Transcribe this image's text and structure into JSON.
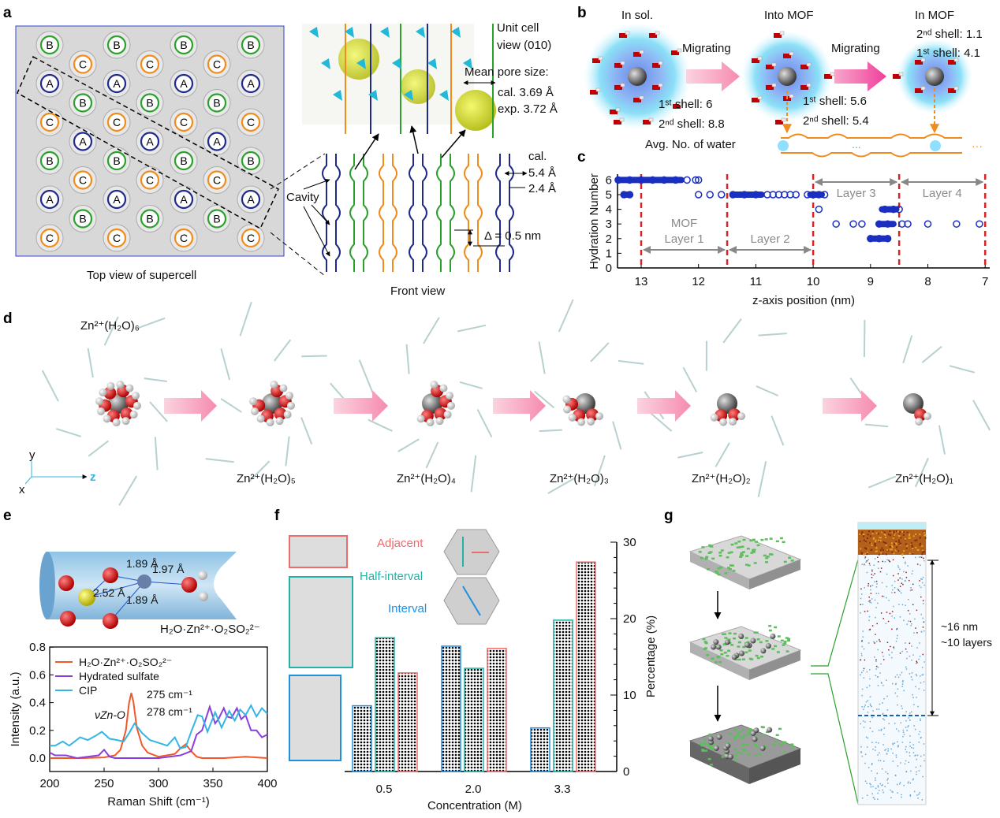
{
  "panels": {
    "a": {
      "label": "a",
      "top_view_caption": "Top view of supercell",
      "front_view_caption": "Front view",
      "unit_cell_label": "Unit cell view (010)",
      "unit_cell_line1": "Unit cell",
      "unit_cell_line2": "view (010)",
      "mean_pore_size": "Mean pore size:",
      "pore_cal": "cal. 3.69 Å",
      "pore_exp": "exp. 3.72 Å",
      "cal_label": "cal.",
      "width_large": "5.4 Å",
      "width_small": "2.4 Å",
      "cavity": "Cavity",
      "delta": "Δ = 0.5 nm",
      "site_rows": [
        [
          "B",
          "B",
          "B",
          "B"
        ],
        [
          "C",
          "C",
          "C"
        ],
        [
          "A",
          "A",
          "A",
          "A"
        ],
        [
          "B",
          "B",
          "B"
        ],
        [
          "C",
          "C",
          "C",
          "C"
        ],
        [
          "A",
          "A",
          "A"
        ],
        [
          "B",
          "B",
          "B",
          "B"
        ],
        [
          "C",
          "C",
          "C"
        ],
        [
          "A",
          "A",
          "A",
          "A"
        ],
        [
          "B",
          "B",
          "B"
        ],
        [
          "C",
          "C",
          "C",
          "C"
        ]
      ],
      "site_colors": {
        "A": "#1f2a8a",
        "B": "#2ca02c",
        "C": "#f08c1e"
      }
    },
    "b": {
      "label": "b",
      "states": [
        "In sol.",
        "Into MOF",
        "In MOF"
      ],
      "migrating": "Migrating",
      "sol_first": "1ˢᵗ shell: 6",
      "sol_second": "2ⁿᵈ shell: 8.8",
      "into_first": "1ˢᵗ shell: 5.6",
      "into_second": "2ⁿᵈ shell: 5.4",
      "in_second": "2ⁿᵈ shell: 1.1",
      "in_first": "1ˢᵗ shell: 4.1",
      "avg_label": "Avg. No. of water",
      "ellipsis": "...",
      "ellipsis2": "···"
    },
    "d": {
      "label": "d",
      "species": [
        "Zn²⁺(H₂O)₆",
        "Zn²⁺(H₂O)₅",
        "Zn²⁺(H₂O)₄",
        "Zn²⁺(H₂O)₃",
        "Zn²⁺(H₂O)₂",
        "Zn²⁺(H₂O)₁"
      ],
      "axes": {
        "x": "x",
        "y": "y",
        "z": "z"
      }
    },
    "e": {
      "label": "e",
      "model_caption": "H₂O·Zn²⁺·O₂SO₂²⁻",
      "bond_labels": [
        "1.89 Å",
        "2.52 Å",
        "1.97 Å",
        "1.89 Å"
      ],
      "annotation_275": "275 cm⁻¹",
      "annotation_278": "278 cm⁻¹",
      "annotation_mode": "νZn-O"
    },
    "f": {
      "label": "f",
      "legend": [
        "Adjacent",
        "Half-interval",
        "Interval"
      ]
    },
    "g": {
      "label": "g",
      "thickness": "~16 nm",
      "layers": "~10 layers"
    }
  },
  "chart_data": [
    {
      "panel": "c",
      "label": "c",
      "type": "scatter",
      "xlabel": "z-axis position (nm)",
      "ylabel": "Hydration Number",
      "xlim": [
        13.4,
        7
      ],
      "ylim": [
        0,
        6
      ],
      "xticks": [
        "13",
        "12",
        "11",
        "10",
        "9",
        "8",
        "7"
      ],
      "yticks": [
        "0",
        "1",
        "2",
        "3",
        "4",
        "5",
        "6"
      ],
      "boundaries": [
        13,
        11.5,
        10,
        8.5,
        7
      ],
      "regions": [
        "MOF",
        "Layer 1",
        "Layer 2",
        "Layer 3",
        "Layer 4"
      ],
      "series": [
        {
          "points": [
            [
              13.4,
              6
            ],
            [
              13.2,
              6
            ],
            [
              13.0,
              6
            ],
            [
              12.8,
              6
            ],
            [
              12.6,
              6
            ],
            [
              12.4,
              6
            ],
            [
              12.2,
              6
            ],
            [
              12.05,
              6
            ],
            [
              12.0,
              6
            ],
            [
              13.3,
              5
            ],
            [
              13.2,
              5
            ],
            [
              12.0,
              5
            ],
            [
              11.8,
              5
            ],
            [
              11.6,
              5
            ],
            [
              11.4,
              5
            ],
            [
              11.2,
              5
            ],
            [
              11.0,
              5
            ],
            [
              10.8,
              5
            ],
            [
              10.7,
              5
            ],
            [
              10.6,
              5
            ],
            [
              10.5,
              5
            ],
            [
              10.4,
              5
            ],
            [
              10.3,
              5
            ],
            [
              10.1,
              5
            ],
            [
              10.0,
              5
            ],
            [
              9.9,
              5
            ],
            [
              9.8,
              5
            ],
            [
              9.9,
              4
            ],
            [
              8.75,
              4
            ],
            [
              8.6,
              4
            ],
            [
              8.5,
              4
            ],
            [
              9.6,
              3
            ],
            [
              9.3,
              3
            ],
            [
              9.15,
              3
            ],
            [
              8.85,
              3
            ],
            [
              8.7,
              3
            ],
            [
              8.45,
              3
            ],
            [
              8.35,
              3
            ],
            [
              8.0,
              3
            ],
            [
              7.5,
              3
            ],
            [
              7.1,
              3
            ],
            [
              9.0,
              2
            ],
            [
              8.85,
              2
            ],
            [
              8.7,
              2
            ]
          ]
        }
      ]
    },
    {
      "panel": "e",
      "type": "line",
      "xlabel": "Raman Shift (cm⁻¹)",
      "ylabel": "Intensity (a.u.)",
      "xlim": [
        200,
        400
      ],
      "ylim": [
        -0.1,
        0.8
      ],
      "xticks": [
        "200",
        "250",
        "300",
        "350",
        "400"
      ],
      "yticks": [
        "0.0",
        "0.2",
        "0.4",
        "0.6",
        "0.8"
      ],
      "legend_position": "top-left",
      "series": [
        {
          "name": "H₂O·Zn²⁺·O₂SO₂²⁻",
          "color": "#f0582a",
          "x": [
            200,
            230,
            250,
            260,
            265,
            270,
            273,
            275,
            277,
            280,
            285,
            290,
            300,
            315,
            320,
            325,
            330,
            335,
            340,
            360,
            380,
            400
          ],
          "y": [
            0.0,
            0.0,
            0.005,
            0.02,
            0.06,
            0.2,
            0.4,
            0.47,
            0.4,
            0.22,
            0.09,
            0.04,
            0.01,
            0.03,
            0.07,
            0.1,
            0.05,
            0.01,
            0.0,
            0.0,
            0.01,
            0.0
          ]
        },
        {
          "name": "Hydrated sulfate",
          "color": "#8a3fdc",
          "x": [
            200,
            205,
            215,
            225,
            245,
            250,
            255,
            260,
            300,
            320,
            330,
            335,
            340,
            347,
            352,
            355,
            360,
            363,
            367,
            372,
            376,
            380,
            385,
            390,
            395,
            400
          ],
          "y": [
            0.04,
            0.02,
            0.02,
            0.0,
            0.02,
            0.06,
            0.01,
            0.0,
            0.0,
            0.02,
            0.05,
            0.17,
            0.2,
            0.37,
            0.25,
            0.28,
            0.36,
            0.3,
            0.29,
            0.36,
            0.28,
            0.31,
            0.2,
            0.2,
            0.15,
            0.17
          ]
        },
        {
          "name": "CIP",
          "color": "#33b5e5",
          "x": [
            200,
            205,
            212,
            218,
            228,
            235,
            242,
            248,
            255,
            262,
            268,
            273,
            278,
            285,
            292,
            300,
            308,
            315,
            320,
            325,
            330,
            336,
            340,
            345,
            352,
            358,
            365,
            370,
            375,
            380,
            385,
            390,
            395,
            400
          ],
          "y": [
            0.09,
            0.09,
            0.12,
            0.09,
            0.15,
            0.13,
            0.16,
            0.19,
            0.14,
            0.13,
            0.12,
            0.18,
            0.25,
            0.18,
            0.13,
            0.11,
            0.09,
            0.15,
            0.07,
            0.08,
            0.19,
            0.31,
            0.3,
            0.19,
            0.33,
            0.22,
            0.34,
            0.27,
            0.35,
            0.31,
            0.38,
            0.3,
            0.36,
            0.32
          ]
        }
      ],
      "annotations": [
        "275 cm⁻¹",
        "278 cm⁻¹",
        "νZn-O"
      ]
    },
    {
      "panel": "f",
      "type": "bar",
      "xlabel": "Concentration (M)",
      "ylabel": "Percentage (%)",
      "categories": [
        "0.5",
        "2.0",
        "3.3"
      ],
      "ylim": [
        0,
        30
      ],
      "yticks": [
        "0",
        "10",
        "20",
        "30"
      ],
      "series": [
        {
          "name": "Interval",
          "color": "#1f8fe0",
          "values": [
            8.6,
            16.4,
            5.7
          ]
        },
        {
          "name": "Half-interval",
          "color": "#22b3a8",
          "values": [
            17.5,
            13.5,
            19.8
          ]
        },
        {
          "name": "Adjacent",
          "color": "#ef6b6b",
          "values": [
            12.9,
            16.1,
            27.4
          ]
        }
      ]
    }
  ]
}
